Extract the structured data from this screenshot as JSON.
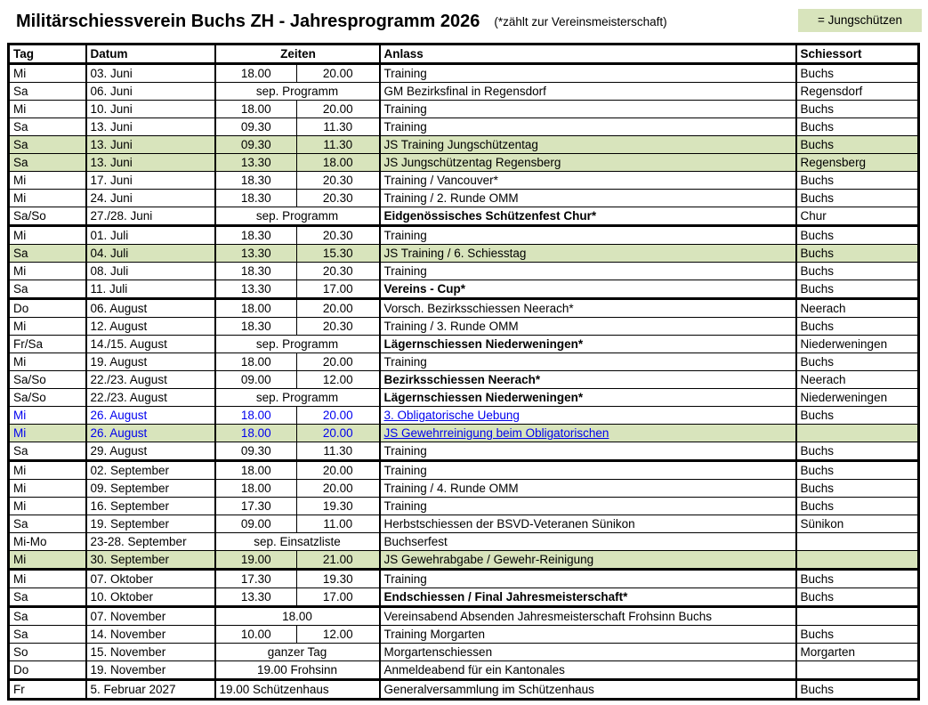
{
  "header": {
    "title": "Militärschiessverein Buchs ZH - Jahresprogramm 2026",
    "subtitle": "(*zählt zur Vereinsmeisterschaft)",
    "legend": "= Jungschützen"
  },
  "colors": {
    "js_green": "#d8e4bc",
    "link_blue": "#0000ee",
    "border": "#000000"
  },
  "columns": {
    "tag": "Tag",
    "datum": "Datum",
    "zeiten": "Zeiten",
    "anlass": "Anlass",
    "schiessort": "Schiessort"
  },
  "sections": [
    {
      "name": "juni",
      "rows": [
        {
          "tag": "Mi",
          "datum": "03. Juni",
          "von": "18.00",
          "bis": "20.00",
          "anlass": "Training",
          "ort": "Buchs"
        },
        {
          "tag": "Sa",
          "datum": "06. Juni",
          "zeit": "sep. Programm",
          "anlass": "GM Bezirksfinal in Regensdorf",
          "ort": "Regensdorf"
        },
        {
          "tag": "Mi",
          "datum": "10. Juni",
          "von": "18.00",
          "bis": "20.00",
          "anlass": "Training",
          "ort": "Buchs"
        },
        {
          "tag": "Sa",
          "datum": "13. Juni",
          "von": "09.30",
          "bis": "11.30",
          "anlass": "Training",
          "ort": "Buchs"
        },
        {
          "tag": "Sa",
          "datum": "13. Juni",
          "von": "09.30",
          "bis": "11.30",
          "anlass": "JS Training Jungschützentag",
          "ort": "Buchs",
          "js": true
        },
        {
          "tag": "Sa",
          "datum": "13. Juni",
          "von": "13.30",
          "bis": "18.00",
          "anlass": "JS Jungschützentag Regensberg",
          "ort": "Regensberg",
          "js": true
        },
        {
          "tag": "Mi",
          "datum": "17. Juni",
          "von": "18.30",
          "bis": "20.30",
          "anlass": "Training / Vancouver*",
          "ort": "Buchs"
        },
        {
          "tag": "Mi",
          "datum": "24. Juni",
          "von": "18.30",
          "bis": "20.30",
          "anlass": "Training / 2. Runde OMM",
          "ort": "Buchs"
        },
        {
          "tag": "Sa/So",
          "datum": "27./28. Juni",
          "zeit": "sep. Programm",
          "anlass": "Eidgenössisches Schützenfest Chur*",
          "ort": "Chur",
          "bold": true
        }
      ]
    },
    {
      "name": "juli",
      "rows": [
        {
          "tag": "Mi",
          "datum": "01. Juli",
          "von": "18.30",
          "bis": "20.30",
          "anlass": "Training",
          "ort": "Buchs"
        },
        {
          "tag": "Sa",
          "datum": "04. Juli",
          "von": "13.30",
          "bis": "15.30",
          "anlass": "JS Training / 6. Schiesstag",
          "ort": "Buchs",
          "js": true
        },
        {
          "tag": "Mi",
          "datum": "08. Juli",
          "von": "18.30",
          "bis": "20.30",
          "anlass": "Training",
          "ort": "Buchs"
        },
        {
          "tag": "Sa",
          "datum": "11. Juli",
          "von": "13.30",
          "bis": "17.00",
          "anlass": "Vereins - Cup*",
          "ort": "Buchs",
          "bold": true
        }
      ]
    },
    {
      "name": "august",
      "rows": [
        {
          "tag": "Do",
          "datum": "06. August",
          "von": "18.00",
          "bis": "20.00",
          "anlass": "Vorsch. Bezirksschiessen Neerach*",
          "ort": "Neerach"
        },
        {
          "tag": "Mi",
          "datum": "12. August",
          "von": "18.30",
          "bis": "20.30",
          "anlass": "Training / 3. Runde OMM",
          "ort": "Buchs"
        },
        {
          "tag": "Fr/Sa",
          "datum": "14./15. August",
          "zeit": "sep. Programm",
          "anlass": "Lägernschiessen Niederweningen*",
          "ort": "Niederweningen",
          "bold": true
        },
        {
          "tag": "Mi",
          "datum": "19. August",
          "von": "18.00",
          "bis": "20.00",
          "anlass": "Training",
          "ort": "Buchs"
        },
        {
          "tag": "Sa/So",
          "datum": "22./23. August",
          "von": "09.00",
          "bis": "12.00",
          "anlass": "Bezirksschiessen Neerach*",
          "ort": "Neerach",
          "bold": true
        },
        {
          "tag": "Sa/So",
          "datum": "22./23. August",
          "zeit": "sep. Programm",
          "anlass": "Lägernschiessen Niederweningen*",
          "ort": "Niederweningen",
          "bold": true
        },
        {
          "tag": "Mi",
          "datum": "26. August",
          "von": "18.00",
          "bis": "20.00",
          "anlass": "3. Obligatorische Uebung",
          "ort": "Buchs",
          "blue": true,
          "link": true
        },
        {
          "tag": "Mi",
          "datum": "26. August",
          "von": "18.00",
          "bis": "20.00",
          "anlass": "JS Gewehrreinigung beim Obligatorischen",
          "ort": "",
          "js": true,
          "blue": true,
          "link": true
        },
        {
          "tag": "Sa",
          "datum": "29. August",
          "von": "09.30",
          "bis": "11.30",
          "anlass": "Training",
          "ort": "Buchs"
        }
      ]
    },
    {
      "name": "september",
      "rows": [
        {
          "tag": "Mi",
          "datum": "02. September",
          "von": "18.00",
          "bis": "20.00",
          "anlass": "Training",
          "ort": "Buchs"
        },
        {
          "tag": "Mi",
          "datum": "09. September",
          "von": "18.00",
          "bis": "20.00",
          "anlass": "Training / 4. Runde OMM",
          "ort": "Buchs"
        },
        {
          "tag": "Mi",
          "datum": "16. September",
          "von": "17.30",
          "bis": "19.30",
          "anlass": "Training",
          "ort": "Buchs"
        },
        {
          "tag": "Sa",
          "datum": "19. September",
          "von": "09.00",
          "bis": "11.00",
          "anlass": "Herbstschiessen der BSVD-Veteranen Sünikon",
          "ort": "Sünikon"
        },
        {
          "tag": "Mi-Mo",
          "datum": "23-28. September",
          "zeit": "sep. Einsatzliste",
          "anlass": "Buchserfest",
          "ort": ""
        },
        {
          "tag": "Mi",
          "datum": "30. September",
          "von": "19.00",
          "bis": "21.00",
          "anlass": "JS Gewehrabgabe / Gewehr-Reinigung",
          "ort": "",
          "js": true
        }
      ]
    },
    {
      "name": "oktober",
      "rows": [
        {
          "tag": "Mi",
          "datum": "07. Oktober",
          "von": "17.30",
          "bis": "19.30",
          "anlass": "Training",
          "ort": "Buchs"
        },
        {
          "tag": "Sa",
          "datum": "10. Oktober",
          "von": "13.30",
          "bis": "17.00",
          "anlass": "Endschiessen / Final Jahresmeisterschaft*",
          "ort": "Buchs",
          "bold": true
        }
      ]
    },
    {
      "name": "november",
      "rows": [
        {
          "tag": "Sa",
          "datum": "07. November",
          "zeit": "18.00",
          "anlass": "Vereinsabend Absenden Jahresmeisterschaft Frohsinn Buchs",
          "ort": ""
        },
        {
          "tag": "Sa",
          "datum": "14. November",
          "von": "10.00",
          "bis": "12.00",
          "anlass": "Training Morgarten",
          "ort": "Buchs"
        },
        {
          "tag": "So",
          "datum": "15. November",
          "zeit": "ganzer Tag",
          "anlass": "Morgartenschiessen",
          "ort": "Morgarten"
        },
        {
          "tag": "Do",
          "datum": "19. November",
          "zeit": "19.00 Frohsinn",
          "anlass": "Anmeldeabend für ein Kantonales",
          "ort": ""
        }
      ]
    },
    {
      "name": "februar-2027",
      "rows": [
        {
          "tag": "Fr",
          "datum": "5. Februar 2027",
          "zeit": "19.00 Schützenhaus",
          "zeit_align": "left",
          "anlass": "Generalversammlung im Schützenhaus",
          "ort": "Buchs"
        }
      ]
    }
  ]
}
